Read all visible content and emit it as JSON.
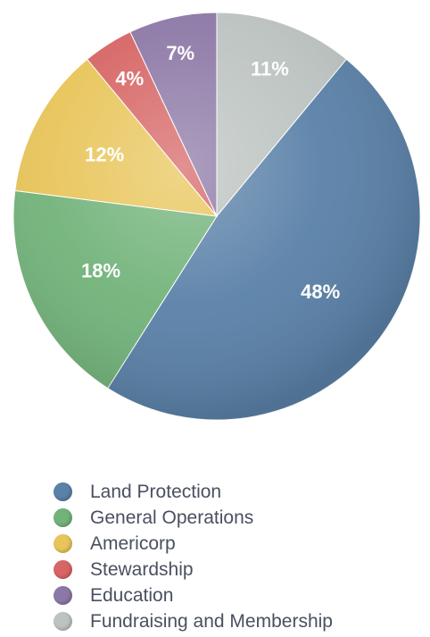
{
  "chart_data": {
    "type": "pie",
    "start_angle_deg": 0,
    "direction": "clockwise",
    "slices": [
      {
        "name": "Fundraising and Membership",
        "value": 11,
        "label": "11%",
        "color": "#bcc3c1"
      },
      {
        "name": "Land Protection",
        "value": 48,
        "label": "48%",
        "color": "#5a81a8"
      },
      {
        "name": "General Operations",
        "value": 18,
        "label": "18%",
        "color": "#72b37a"
      },
      {
        "name": "Americorp",
        "value": 12,
        "label": "12%",
        "color": "#e8c55a"
      },
      {
        "name": "Stewardship",
        "value": 4,
        "label": "4%",
        "color": "#d76565"
      },
      {
        "name": "Education",
        "value": 7,
        "label": "7%",
        "color": "#8c78a6"
      }
    ],
    "legend": {
      "position": "bottom",
      "entries": [
        {
          "label": "Land Protection",
          "color": "#5a81a8"
        },
        {
          "label": "General Operations",
          "color": "#72b37a"
        },
        {
          "label": "Americorp",
          "color": "#e8c55a"
        },
        {
          "label": "Stewardship",
          "color": "#d76565"
        },
        {
          "label": "Education",
          "color": "#8c78a6"
        },
        {
          "label": "Fundraising and Membership",
          "color": "#bcc3c1"
        }
      ]
    }
  }
}
